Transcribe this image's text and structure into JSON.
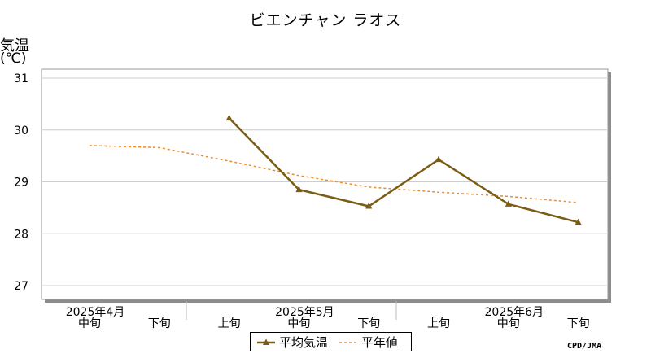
{
  "chart_data": {
    "type": "line",
    "title": "ビエンチャン ラオス",
    "ylabel_line1": "気温",
    "ylabel_line2": "(℃)",
    "ylim": [
      27,
      31
    ],
    "yticks": [
      "31",
      "30",
      "29",
      "28",
      "27"
    ],
    "categories": [
      "中旬",
      "下旬",
      "上旬",
      "中旬",
      "下旬",
      "上旬",
      "中旬",
      "下旬"
    ],
    "month_labels": [
      "2025年4月",
      "2025年5月",
      "2025年6月"
    ],
    "series": [
      {
        "name": "平均気温",
        "values": [
          null,
          null,
          30.23,
          28.85,
          28.53,
          29.43,
          28.57,
          28.22
        ],
        "color": "#7a5c14",
        "style": "solid-triangle"
      },
      {
        "name": "平年値",
        "values": [
          29.7,
          29.66,
          29.4,
          29.12,
          28.9,
          28.8,
          28.72,
          28.6
        ],
        "color": "#f08c2a",
        "style": "dashed"
      }
    ],
    "grid": true,
    "legend": "bottom-center"
  },
  "credit": "CPD/JMA"
}
